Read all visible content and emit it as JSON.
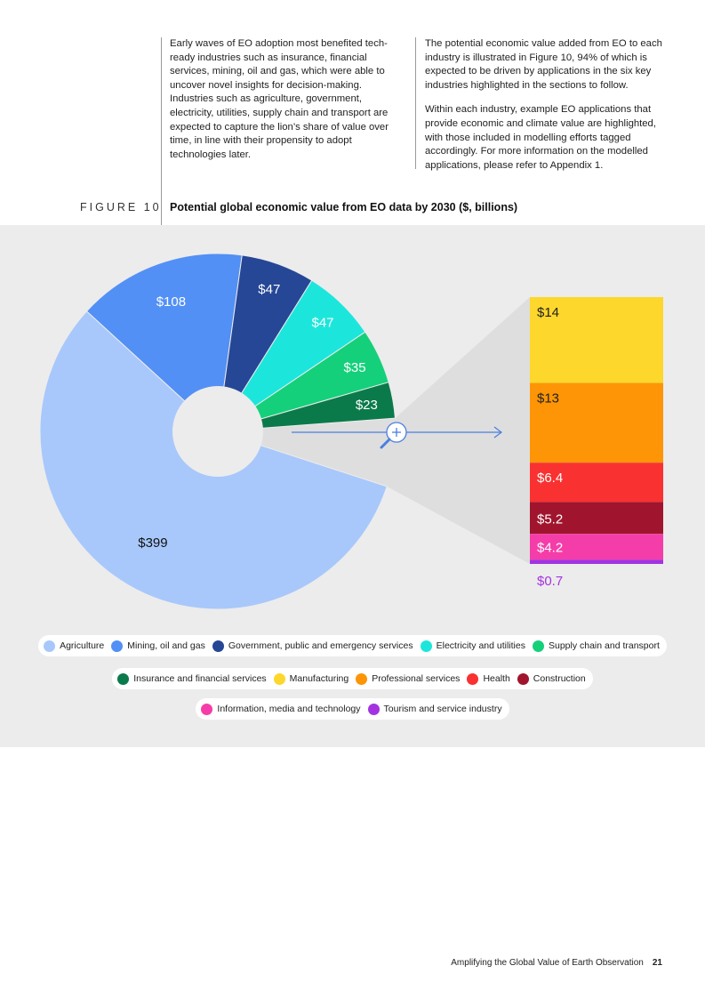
{
  "intro": {
    "left": "Early waves of EO adoption most benefited tech-ready industries such as insurance, financial services, mining, oil and gas, which were able to uncover novel insights for decision-making. Industries such as agriculture, government, electricity, utilities, supply chain and transport are expected to capture the lion’s share of value over time, in line with their propensity to adopt technologies later.",
    "right_p1": "The potential economic value added from EO to each industry is illustrated in Figure 10, 94% of which is expected to be driven by applications in the six key industries highlighted in the sections to follow.",
    "right_p2": "Within each industry, example EO applications that provide economic and climate value are highlighted, with those included in modelling efforts tagged accordingly. For more information on the modelled applications, please refer to Appendix 1."
  },
  "figure": {
    "label": "FIGURE 10",
    "title": "Potential global economic value from EO data by 2030 ($, billions)"
  },
  "chart_data": {
    "type": "pie",
    "title": "Potential global economic value from EO data by 2030 ($, billions)",
    "unit": "$ billions",
    "slices": [
      {
        "name": "Agriculture",
        "value": 399,
        "label": "$399",
        "color": "#a8c8fb"
      },
      {
        "name": "Mining, oil and gas",
        "value": 108,
        "label": "$108",
        "color": "#5290f5"
      },
      {
        "name": "Government, public and emergency services",
        "value": 47,
        "label": "$47",
        "color": "#264796"
      },
      {
        "name": "Electricity and utilities",
        "value": 47,
        "label": "$47",
        "color": "#1ce6dc"
      },
      {
        "name": "Supply chain and transport",
        "value": 35,
        "label": "$35",
        "color": "#15d07b"
      },
      {
        "name": "Insurance and financial services",
        "value": 23,
        "label": "$23",
        "color": "#0b7a4b"
      }
    ],
    "breakout": [
      {
        "name": "Manufacturing",
        "value": 14,
        "label": "$14",
        "color": "#fdd72c"
      },
      {
        "name": "Professional services",
        "value": 13,
        "label": "$13",
        "color": "#fd9506"
      },
      {
        "name": "Health",
        "value": 6.4,
        "label": "$6.4",
        "color": "#f93131"
      },
      {
        "name": "Construction",
        "value": 5.2,
        "label": "$5.2",
        "color": "#a0152d"
      },
      {
        "name": "Information, media and technology",
        "value": 4.2,
        "label": "$4.2",
        "color": "#f53da9"
      },
      {
        "name": "Tourism and service industry",
        "value": 0.7,
        "label": "$0.7",
        "color": "#a333e0"
      }
    ]
  },
  "legend": {
    "rows": [
      [
        {
          "name": "Agriculture",
          "color": "#a8c8fb"
        },
        {
          "name": "Mining, oil and gas",
          "color": "#5290f5"
        },
        {
          "name": "Government, public and emergency services",
          "color": "#264796"
        },
        {
          "name": "Electricity and utilities",
          "color": "#1ce6dc"
        },
        {
          "name": "Supply chain and transport",
          "color": "#15d07b"
        }
      ],
      [
        {
          "name": "Insurance and financial services",
          "color": "#0b7a4b"
        },
        {
          "name": "Manufacturing",
          "color": "#fdd72c"
        },
        {
          "name": "Professional services",
          "color": "#fd9506"
        },
        {
          "name": "Health",
          "color": "#f93131"
        },
        {
          "name": "Construction",
          "color": "#a0152d"
        }
      ],
      [
        {
          "name": "Information, media and technology",
          "color": "#f53da9"
        },
        {
          "name": "Tourism and service industry",
          "color": "#a333e0"
        }
      ]
    ]
  },
  "footer": {
    "title": "Amplifying the Global Value of Earth Observation",
    "page": "21"
  }
}
